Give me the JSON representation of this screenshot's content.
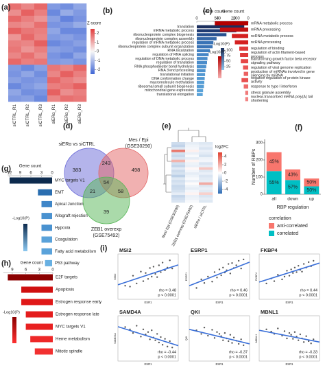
{
  "chart_data": [
    {
      "type": "heatmap",
      "panel": "(a)",
      "columns": [
        "siCTRL_R1",
        "siCTRL_R2",
        "siCTRL_R3",
        "siERα_R1",
        "siERα_R2",
        "siERα_R3"
      ],
      "colorbar_title": "Z-score",
      "zlim": [
        -2.5,
        2.5
      ],
      "colorbar_ticks": [
        2,
        1,
        0,
        -1,
        -2
      ],
      "colormap": [
        "#3f66d6",
        "#f7f7f7",
        "#e23b3b"
      ],
      "matrix": [
        [
          1.8,
          1.5,
          1.9,
          -1.6,
          -1.8,
          -1.4
        ],
        [
          1.4,
          2.0,
          1.6,
          -1.9,
          -1.3,
          -1.6
        ],
        [
          1.9,
          1.6,
          1.3,
          -1.5,
          -2.0,
          -1.7
        ],
        [
          1.5,
          1.4,
          1.8,
          -1.7,
          -1.6,
          -1.3
        ],
        [
          2.0,
          1.7,
          1.6,
          -1.4,
          -1.9,
          -1.9
        ],
        [
          1.3,
          1.9,
          1.5,
          -1.6,
          -1.5,
          -1.7
        ],
        [
          1.6,
          1.5,
          2.0,
          -1.9,
          -1.7,
          -1.5
        ],
        [
          1.7,
          1.3,
          1.6,
          -1.5,
          -1.6,
          -1.8
        ],
        [
          1.5,
          1.8,
          1.4,
          -1.7,
          -1.9,
          -1.4
        ],
        [
          1.9,
          1.6,
          1.7,
          -1.6,
          -1.5,
          -1.7
        ],
        [
          -1.6,
          -1.9,
          -1.5,
          1.7,
          1.5,
          1.9
        ],
        [
          -1.7,
          -1.4,
          -1.8,
          1.5,
          2.0,
          1.6
        ],
        [
          -1.5,
          -1.7,
          -1.6,
          1.9,
          1.6,
          1.4
        ],
        [
          -1.9,
          -1.6,
          -1.4,
          1.6,
          1.7,
          2.0
        ],
        [
          -1.4,
          -1.8,
          -1.7,
          2.0,
          1.4,
          1.6
        ],
        [
          -1.6,
          -1.5,
          -1.9,
          1.5,
          1.8,
          1.7
        ]
      ]
    },
    {
      "type": "barh",
      "panel": "(b)",
      "xlabel": "Gene count",
      "xlim": [
        0,
        130
      ],
      "xticks": [
        0,
        50,
        100
      ],
      "categories": [
        "translation",
        "mRNA metabolic process",
        "ribonucleoprotein complex biogenesis",
        "ribonucleoprotein complex assembly",
        "regulation of mRNA metabolic process",
        "ribonucleoprotein complex subunit organization",
        "RNA localization",
        "regulation of RNA splicing",
        "regulation of DNA metabolic process",
        "regulation of translation",
        "RNA phosphodiester bond hydrolysis",
        "RNA 3'end processing",
        "translational initiation",
        "DNA conformation change",
        "macromolecule methylation",
        "ribosomal small subunit biogenesis",
        "mitochondrial gene expression",
        "translational elongation"
      ],
      "values": [
        120,
        100,
        75,
        50,
        42,
        40,
        33,
        30,
        27,
        26,
        24,
        22,
        21,
        20,
        19,
        18,
        16,
        15
      ],
      "colors": [
        "#1b2f5e",
        "#1f3b73",
        "#27508f",
        "#3467a8",
        "#3b74b6",
        "#3b74b6",
        "#4280c0",
        "#4686c6",
        "#4a8cca",
        "#4a8cca",
        "#4e92ce",
        "#4e92ce",
        "#5298d2",
        "#5298d2",
        "#569dd5",
        "#569dd5",
        "#5aa2d8",
        "#5aa2d8"
      ],
      "legend_title": "-Log10(P)",
      "legend_ticks": [
        100,
        75,
        50,
        25
      ],
      "legend_lim": [
        10,
        110
      ],
      "legend_colors": [
        "#1b2f5e",
        "#8cc4ee"
      ]
    },
    {
      "type": "barh",
      "panel": "(c)",
      "xlabel": "Gene count",
      "xlim": [
        0,
        48
      ],
      "xticks": [
        40,
        20,
        0
      ],
      "x_reversed": true,
      "categories": [
        "mRNA metabolic process",
        "mRNA processing",
        "ncRNA metabolic process",
        "ncRNA processing",
        "regulation of binding",
        "regulation of actin filament-based process",
        "transforming growth factor beta receptor signaling pathway",
        "regulation of viral genome replication",
        "production of miRNAs involved in gene silencing by miRNA",
        "negative regulation of protein kinase activity",
        "response to type I interferon",
        "stress granule assembly",
        "nuclear-transcribed mRNA poly(A) tail shortening"
      ],
      "values": [
        45,
        38,
        22,
        18,
        12,
        11,
        10,
        7,
        6,
        9,
        6,
        4,
        4
      ],
      "colors": [
        "#b30000",
        "#c20f0f",
        "#d42020",
        "#d42020",
        "#e03a3a",
        "#e03a3a",
        "#e64848",
        "#ea5656",
        "#ec6060",
        "#e85050",
        "#ee6a6a",
        "#f07a7a",
        "#f28484"
      ],
      "legend_title": "-Log10(P)",
      "legend_colors": [
        "#b30000",
        "#f6b0b0"
      ]
    },
    {
      "type": "venn",
      "panel": "(d)",
      "sets": [
        {
          "name": "siERα vs siCTRL",
          "color": "#6a6ad8"
        },
        {
          "name": "Mes / Epi",
          "subname": "(GSE30290)",
          "color": "#e36464"
        },
        {
          "name": "ZEB1 overexp",
          "subname": "(GSE75492)",
          "color": "#55b555"
        }
      ],
      "regions": [
        383,
        243,
        498,
        54,
        21,
        58,
        39
      ]
    },
    {
      "type": "heatmap",
      "panel": "(e)",
      "columns": [
        "Mes/ Epi (GSE30290)",
        "ZEB1 overexp (GSE75492)",
        "siERα / siCTRL"
      ],
      "colorbar_title": "log2FC",
      "zlim": [
        -5,
        5
      ],
      "colorbar_ticks": [
        4,
        2,
        0,
        -2,
        -4
      ],
      "colormap": [
        "#2f6db5",
        "#ffffff",
        "#e04030"
      ],
      "matrix": [
        [
          -1.2,
          -0.6,
          -0.8
        ],
        [
          -1.5,
          -0.4,
          -0.6
        ],
        [
          -0.8,
          -0.3,
          -0.9
        ],
        [
          3.5,
          0.4,
          -0.5
        ],
        [
          -1.0,
          -0.5,
          -0.7
        ],
        [
          -1.3,
          -0.2,
          -1.0
        ],
        [
          -0.9,
          -0.6,
          -0.4
        ],
        [
          2.0,
          0.3,
          -0.3
        ],
        [
          -1.1,
          -0.4,
          -0.9
        ],
        [
          -1.4,
          -0.5,
          -0.6
        ],
        [
          -0.7,
          0.2,
          1.5
        ],
        [
          -1.2,
          -0.3,
          -0.8
        ],
        [
          -1.0,
          -0.6,
          -0.5
        ],
        [
          -1.6,
          -0.4,
          -0.9
        ],
        [
          -0.8,
          -0.2,
          -0.7
        ],
        [
          -1.1,
          -0.5,
          -0.6
        ],
        [
          -0.9,
          0.1,
          2.2
        ],
        [
          -1.3,
          -0.4,
          -0.8
        ],
        [
          -1.2,
          -0.6,
          -0.5
        ],
        [
          -1.0,
          -0.3,
          -0.7
        ],
        [
          -0.6,
          0.3,
          1.2
        ],
        [
          -1.4,
          -0.5,
          -0.9
        ],
        [
          -1.1,
          -0.4,
          -0.6
        ],
        [
          -0.9,
          -0.2,
          -0.8
        ]
      ]
    },
    {
      "type": "stacked_bar",
      "panel": "(f)",
      "categories": [
        "all",
        "down",
        "up"
      ],
      "ylabel": "Number of RBPs",
      "xlabel": "RBP regulation",
      "ylim": [
        0,
        320
      ],
      "yticks": [
        0,
        100,
        200,
        300
      ],
      "legend_title": "correlation",
      "series": [
        {
          "name": "anti-correlated",
          "color": "#f8766d",
          "values": [
            110,
            62,
            46
          ],
          "labels": [
            "45%",
            "43%",
            "50%"
          ]
        },
        {
          "name": "correlated",
          "color": "#00bfc4",
          "values": [
            135,
            83,
            46
          ],
          "labels": [
            "55%",
            "57%",
            "50%"
          ]
        }
      ]
    },
    {
      "type": "barh",
      "panel": "(g)",
      "xlabel": "Gene count",
      "xlim": [
        0,
        12.5
      ],
      "xticks": [
        12,
        9,
        6,
        3,
        0
      ],
      "x_reversed": true,
      "categories": [
        "MYC targets V1",
        "EMT",
        "Apical Junction",
        "Allograft rejection",
        "Hypoxia",
        "Coagulation",
        "Fatty acid metabolism",
        "P53 pathway"
      ],
      "values": [
        12,
        4,
        3,
        3,
        3,
        3,
        3,
        2
      ],
      "colors": [
        "#0d2b4e",
        "#2a6eb0",
        "#3f86c8",
        "#4a92d0",
        "#4a92d0",
        "#5aa2da",
        "#5aa2da",
        "#68b0e2"
      ],
      "legend_title": "-Log10(P)",
      "legend_colors": [
        "#0d2b4e",
        "#8cc8f0"
      ]
    },
    {
      "type": "barh",
      "panel": "(h)",
      "xlabel": "Gene count",
      "xlim": [
        0,
        11
      ],
      "xticks": [
        9,
        6,
        3,
        0
      ],
      "x_reversed": true,
      "categories": [
        "E2F targets",
        "Apoptosis",
        "Estrogen response early",
        "Estrogen response late",
        "MYC targets V1",
        "Heme metabolism",
        "Mitotic spindle"
      ],
      "values": [
        10,
        7,
        7,
        6,
        6,
        5,
        4
      ],
      "colors": [
        "#8b0000",
        "#d01010",
        "#e01818",
        "#e41c1c",
        "#e82020",
        "#ee2828",
        "#f23030"
      ],
      "legend_title": "-Log10(P)",
      "legend_colors": [
        "#8b0000",
        "#ff3030"
      ]
    },
    {
      "type": "scatter",
      "panel": "(i)",
      "title": "MSI2",
      "xlabel": "ESR1",
      "ylabel": "MSI2",
      "xlim": [
        0,
        10
      ],
      "ylim": [
        0,
        10
      ],
      "x": [
        1.2,
        2.5,
        3.1,
        3.8,
        4.2,
        4.6,
        5.0,
        5.3,
        5.6,
        5.9,
        6.2,
        6.5,
        6.8,
        7.1,
        7.4,
        7.8,
        8.2,
        8.6,
        9.0,
        2.0
      ],
      "y": [
        3.0,
        5.2,
        3.5,
        6.1,
        4.0,
        5.8,
        4.5,
        6.9,
        5.0,
        7.2,
        5.6,
        4.9,
        7.5,
        6.0,
        8.1,
        6.4,
        7.0,
        8.6,
        6.8,
        2.8
      ],
      "fit": {
        "x": [
          0,
          10
        ],
        "y": [
          3.2,
          7.6
        ]
      },
      "color": "#222222",
      "fit_color": "#3a6fd8",
      "annotations": [
        "rho = 0.48",
        "p < 0.0001"
      ]
    },
    {
      "type": "scatter",
      "title": "ESRP1",
      "xlabel": "ESR1",
      "ylabel": "ESRP1",
      "xlim": [
        0,
        10
      ],
      "ylim": [
        0,
        10
      ],
      "x": [
        1.2,
        2.5,
        3.1,
        3.8,
        4.2,
        4.6,
        5.0,
        5.3,
        5.6,
        5.9,
        6.2,
        6.5,
        6.8,
        7.1,
        7.4,
        7.8,
        8.2,
        8.6,
        9.0,
        2.0
      ],
      "y": [
        2.5,
        3.6,
        5.0,
        3.9,
        6.0,
        4.8,
        6.6,
        5.3,
        7.0,
        5.9,
        6.4,
        7.8,
        5.7,
        8.0,
        6.9,
        7.5,
        8.5,
        6.8,
        8.8,
        4.4
      ],
      "fit": {
        "x": [
          0,
          10
        ],
        "y": [
          3.0,
          8.2
        ]
      },
      "color": "#222222",
      "fit_color": "#3a6fd8",
      "annotations": [
        "rho = 0.46",
        "p < 0.0001"
      ]
    },
    {
      "type": "scatter",
      "title": "FKBP4",
      "xlabel": "ESR1",
      "ylabel": "FKBP4",
      "xlim": [
        0,
        10
      ],
      "ylim": [
        0,
        10
      ],
      "x": [
        1.2,
        2.5,
        3.1,
        3.8,
        4.2,
        4.6,
        5.0,
        5.3,
        5.6,
        5.9,
        6.2,
        6.5,
        6.8,
        7.1,
        7.4,
        7.8,
        8.2,
        8.6,
        9.0,
        2.0
      ],
      "y": [
        3.5,
        4.0,
        5.4,
        4.4,
        5.0,
        6.3,
        5.2,
        6.6,
        5.8,
        7.0,
        6.0,
        7.4,
        6.5,
        6.1,
        7.8,
        7.0,
        8.2,
        7.3,
        8.5,
        4.6
      ],
      "fit": {
        "x": [
          0,
          10
        ],
        "y": [
          3.8,
          8.0
        ]
      },
      "color": "#222222",
      "fit_color": "#3a6fd8",
      "annotations": [
        "rho = 0.44",
        "p < 0.0001"
      ]
    },
    {
      "type": "scatter",
      "title": "SAMD4A",
      "xlabel": "ESR1",
      "ylabel": "SAMD4A",
      "xlim": [
        0,
        10
      ],
      "ylim": [
        0,
        10
      ],
      "x": [
        1.2,
        2.5,
        3.1,
        3.8,
        4.2,
        4.6,
        5.0,
        5.3,
        5.6,
        5.9,
        6.2,
        6.5,
        6.8,
        7.1,
        7.4,
        7.8,
        8.2,
        8.6,
        9.0,
        2.0
      ],
      "y": [
        7.5,
        6.2,
        7.8,
        5.4,
        7.0,
        5.9,
        6.4,
        4.8,
        6.8,
        5.2,
        4.6,
        6.0,
        4.1,
        5.3,
        3.6,
        4.9,
        3.2,
        4.4,
        3.0,
        7.0
      ],
      "fit": {
        "x": [
          0,
          10
        ],
        "y": [
          7.6,
          3.4
        ]
      },
      "color": "#222222",
      "fit_color": "#3a6fd8",
      "annotations": [
        "rho = -0.44",
        "p < 0.0001"
      ]
    },
    {
      "type": "scatter",
      "title": "QKI",
      "xlabel": "ESR1",
      "ylabel": "QKI",
      "xlim": [
        0,
        10
      ],
      "ylim": [
        0,
        10
      ],
      "x": [
        1.2,
        2.5,
        3.1,
        3.8,
        4.2,
        4.6,
        5.0,
        5.3,
        5.6,
        5.9,
        6.2,
        6.5,
        6.8,
        7.1,
        7.4,
        7.8,
        8.2,
        8.6,
        9.0,
        2.0
      ],
      "y": [
        6.8,
        7.4,
        5.6,
        6.9,
        5.1,
        6.4,
        6.0,
        5.5,
        4.6,
        6.2,
        5.0,
        4.4,
        5.8,
        4.0,
        5.2,
        4.5,
        3.8,
        4.8,
        3.5,
        6.0
      ],
      "fit": {
        "x": [
          0,
          10
        ],
        "y": [
          7.0,
          3.8
        ]
      },
      "color": "#222222",
      "fit_color": "#3a6fd8",
      "annotations": [
        "rho = -0.37",
        "p < 0.0001"
      ]
    },
    {
      "type": "scatter",
      "title": "MBNL1",
      "xlabel": "ESR1",
      "ylabel": "MBNL1",
      "xlim": [
        0,
        10
      ],
      "ylim": [
        0,
        10
      ],
      "x": [
        1.2,
        2.5,
        3.1,
        3.8,
        4.2,
        4.6,
        5.0,
        5.3,
        5.6,
        5.9,
        6.2,
        6.5,
        6.8,
        7.1,
        7.4,
        7.8,
        8.2,
        8.6,
        9.0,
        2.0
      ],
      "y": [
        7.0,
        6.0,
        7.2,
        5.6,
        6.6,
        5.0,
        6.2,
        5.8,
        4.9,
        6.4,
        5.4,
        4.6,
        5.9,
        5.0,
        4.2,
        5.5,
        4.4,
        3.9,
        4.8,
        6.5
      ],
      "fit": {
        "x": [
          0,
          10
        ],
        "y": [
          6.8,
          4.2
        ]
      },
      "color": "#222222",
      "fit_color": "#3a6fd8",
      "annotations": [
        "rho = -0.33",
        "p < 0.0001"
      ]
    }
  ]
}
